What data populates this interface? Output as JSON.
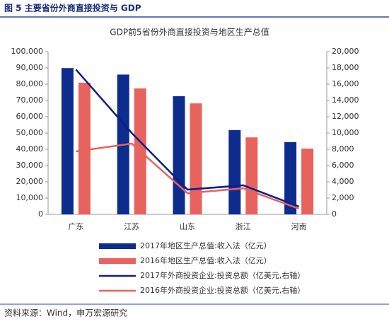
{
  "header": {
    "title": "图 5  主要省份外商直接投资与 GDP"
  },
  "source": "资料来源：Wind，申万宏源研究",
  "chart_data": {
    "type": "bar",
    "title": "GDP前5省份外商直接投资与地区生产总值",
    "categories": [
      "广东",
      "江苏",
      "山东",
      "浙江",
      "河南"
    ],
    "series": [
      {
        "name": "2017年地区生产总值:收入法（亿元）",
        "type": "bar",
        "color": "#0c2c8e",
        "values": [
          89900,
          85900,
          72600,
          51800,
          44400
        ]
      },
      {
        "name": "2016年地区生产总值:收入法（亿元）",
        "type": "bar",
        "color": "#e8625e",
        "values": [
          80900,
          77400,
          68200,
          47300,
          40400
        ]
      },
      {
        "name": "2017年外商投资企业:投资总额（亿美元,右轴）",
        "type": "line",
        "axis": "y2",
        "color": "#0d1f8c",
        "values": [
          17800,
          10000,
          3040,
          3570,
          960
        ]
      },
      {
        "name": "2016年外商投资企业:投资总额（亿美元,右轴）",
        "type": "line",
        "axis": "y2",
        "color": "#e8625e",
        "values": [
          7740,
          8700,
          2600,
          3200,
          700
        ]
      }
    ],
    "ylim": [
      0,
      100000
    ],
    "yticks": [
      0,
      {
        "value": 10000,
        "label": "10,000"
      },
      {
        "value": 20000,
        "label": "20,000"
      },
      {
        "value": 30000,
        "label": "30,000"
      },
      {
        "value": 40000,
        "label": "40,000"
      },
      {
        "value": 50000,
        "label": "50,000"
      },
      {
        "value": 60000,
        "label": "60,000"
      },
      {
        "value": 70000,
        "label": "70,000"
      },
      {
        "value": 80000,
        "label": "80,000"
      },
      {
        "value": 90000,
        "label": "90,000"
      },
      {
        "value": 100000,
        "label": "100,000"
      }
    ],
    "y2lim": [
      0,
      20000
    ],
    "y2ticks": [
      0,
      {
        "value": 2000,
        "label": "2,000"
      },
      {
        "value": 4000,
        "label": "4,000"
      },
      {
        "value": 6000,
        "label": "6,000"
      },
      {
        "value": 8000,
        "label": "8,000"
      },
      {
        "value": 10000,
        "label": "10,000"
      },
      {
        "value": 12000,
        "label": "12,000"
      },
      {
        "value": 14000,
        "label": "14,000"
      },
      {
        "value": 16000,
        "label": "16,000"
      },
      {
        "value": 18000,
        "label": "18,000"
      },
      {
        "value": 20000,
        "label": "20,000"
      }
    ]
  }
}
